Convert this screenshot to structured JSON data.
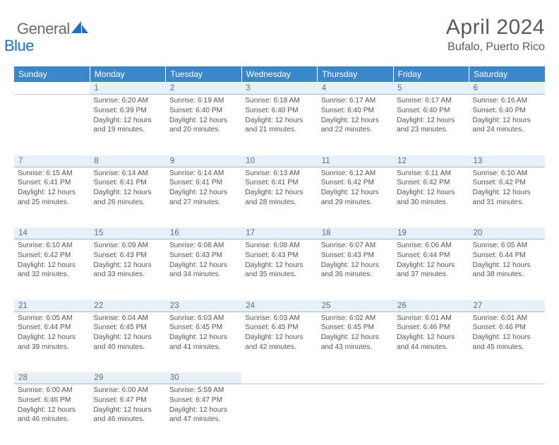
{
  "brand": {
    "part1": "General",
    "part2": "Blue"
  },
  "title": "April 2024",
  "location": "Bufalo, Puerto Rico",
  "colors": {
    "header_bg": "#3b87c8",
    "daynum_bg": "#e7f0f8",
    "daynum_border": "#9fb8cc",
    "text": "#555555",
    "brand_blue": "#1f71b8"
  },
  "day_names": [
    "Sunday",
    "Monday",
    "Tuesday",
    "Wednesday",
    "Thursday",
    "Friday",
    "Saturday"
  ],
  "weeks": [
    {
      "nums": [
        "",
        "1",
        "2",
        "3",
        "4",
        "5",
        "6"
      ],
      "cells": [
        null,
        {
          "sunrise": "6:20 AM",
          "sunset": "6:39 PM",
          "daylight": "12 hours and 19 minutes."
        },
        {
          "sunrise": "6:19 AM",
          "sunset": "6:40 PM",
          "daylight": "12 hours and 20 minutes."
        },
        {
          "sunrise": "6:18 AM",
          "sunset": "6:40 PM",
          "daylight": "12 hours and 21 minutes."
        },
        {
          "sunrise": "6:17 AM",
          "sunset": "6:40 PM",
          "daylight": "12 hours and 22 minutes."
        },
        {
          "sunrise": "6:17 AM",
          "sunset": "6:40 PM",
          "daylight": "12 hours and 23 minutes."
        },
        {
          "sunrise": "6:16 AM",
          "sunset": "6:40 PM",
          "daylight": "12 hours and 24 minutes."
        }
      ]
    },
    {
      "nums": [
        "7",
        "8",
        "9",
        "10",
        "11",
        "12",
        "13"
      ],
      "cells": [
        {
          "sunrise": "6:15 AM",
          "sunset": "6:41 PM",
          "daylight": "12 hours and 25 minutes."
        },
        {
          "sunrise": "6:14 AM",
          "sunset": "6:41 PM",
          "daylight": "12 hours and 26 minutes."
        },
        {
          "sunrise": "6:14 AM",
          "sunset": "6:41 PM",
          "daylight": "12 hours and 27 minutes."
        },
        {
          "sunrise": "6:13 AM",
          "sunset": "6:41 PM",
          "daylight": "12 hours and 28 minutes."
        },
        {
          "sunrise": "6:12 AM",
          "sunset": "6:42 PM",
          "daylight": "12 hours and 29 minutes."
        },
        {
          "sunrise": "6:11 AM",
          "sunset": "6:42 PM",
          "daylight": "12 hours and 30 minutes."
        },
        {
          "sunrise": "6:10 AM",
          "sunset": "6:42 PM",
          "daylight": "12 hours and 31 minutes."
        }
      ]
    },
    {
      "nums": [
        "14",
        "15",
        "16",
        "17",
        "18",
        "19",
        "20"
      ],
      "cells": [
        {
          "sunrise": "6:10 AM",
          "sunset": "6:42 PM",
          "daylight": "12 hours and 32 minutes."
        },
        {
          "sunrise": "6:09 AM",
          "sunset": "6:43 PM",
          "daylight": "12 hours and 33 minutes."
        },
        {
          "sunrise": "6:08 AM",
          "sunset": "6:43 PM",
          "daylight": "12 hours and 34 minutes."
        },
        {
          "sunrise": "6:08 AM",
          "sunset": "6:43 PM",
          "daylight": "12 hours and 35 minutes."
        },
        {
          "sunrise": "6:07 AM",
          "sunset": "6:43 PM",
          "daylight": "12 hours and 36 minutes."
        },
        {
          "sunrise": "6:06 AM",
          "sunset": "6:44 PM",
          "daylight": "12 hours and 37 minutes."
        },
        {
          "sunrise": "6:05 AM",
          "sunset": "6:44 PM",
          "daylight": "12 hours and 38 minutes."
        }
      ]
    },
    {
      "nums": [
        "21",
        "22",
        "23",
        "24",
        "25",
        "26",
        "27"
      ],
      "cells": [
        {
          "sunrise": "6:05 AM",
          "sunset": "6:44 PM",
          "daylight": "12 hours and 39 minutes."
        },
        {
          "sunrise": "6:04 AM",
          "sunset": "6:45 PM",
          "daylight": "12 hours and 40 minutes."
        },
        {
          "sunrise": "6:03 AM",
          "sunset": "6:45 PM",
          "daylight": "12 hours and 41 minutes."
        },
        {
          "sunrise": "6:03 AM",
          "sunset": "6:45 PM",
          "daylight": "12 hours and 42 minutes."
        },
        {
          "sunrise": "6:02 AM",
          "sunset": "6:45 PM",
          "daylight": "12 hours and 43 minutes."
        },
        {
          "sunrise": "6:01 AM",
          "sunset": "6:46 PM",
          "daylight": "12 hours and 44 minutes."
        },
        {
          "sunrise": "6:01 AM",
          "sunset": "6:46 PM",
          "daylight": "12 hours and 45 minutes."
        }
      ]
    },
    {
      "nums": [
        "28",
        "29",
        "30",
        "",
        "",
        "",
        ""
      ],
      "cells": [
        {
          "sunrise": "6:00 AM",
          "sunset": "6:46 PM",
          "daylight": "12 hours and 46 minutes."
        },
        {
          "sunrise": "6:00 AM",
          "sunset": "6:47 PM",
          "daylight": "12 hours and 46 minutes."
        },
        {
          "sunrise": "5:59 AM",
          "sunset": "6:47 PM",
          "daylight": "12 hours and 47 minutes."
        },
        null,
        null,
        null,
        null
      ]
    }
  ],
  "labels": {
    "sunrise": "Sunrise:",
    "sunset": "Sunset:",
    "daylight": "Daylight:"
  }
}
